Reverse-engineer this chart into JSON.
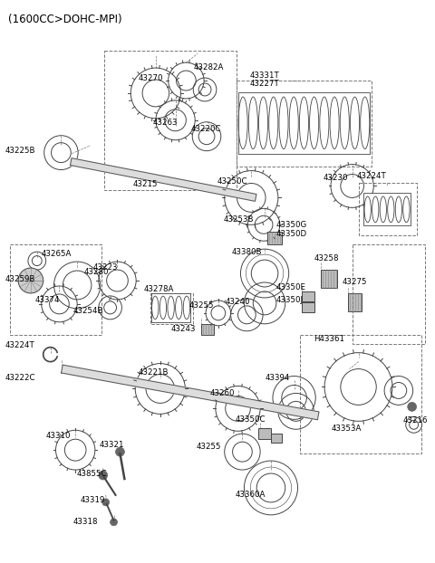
{
  "title": "(1600CC>DOHC-MPI)",
  "bg": "#ffffff",
  "lc": "#555555",
  "tc": "#000000",
  "fs": 6.2,
  "title_fs": 8.5,
  "figw": 4.8,
  "figh": 6.22,
  "dpi": 100,
  "xlim": [
    0,
    480
  ],
  "ylim": [
    0,
    622
  ]
}
